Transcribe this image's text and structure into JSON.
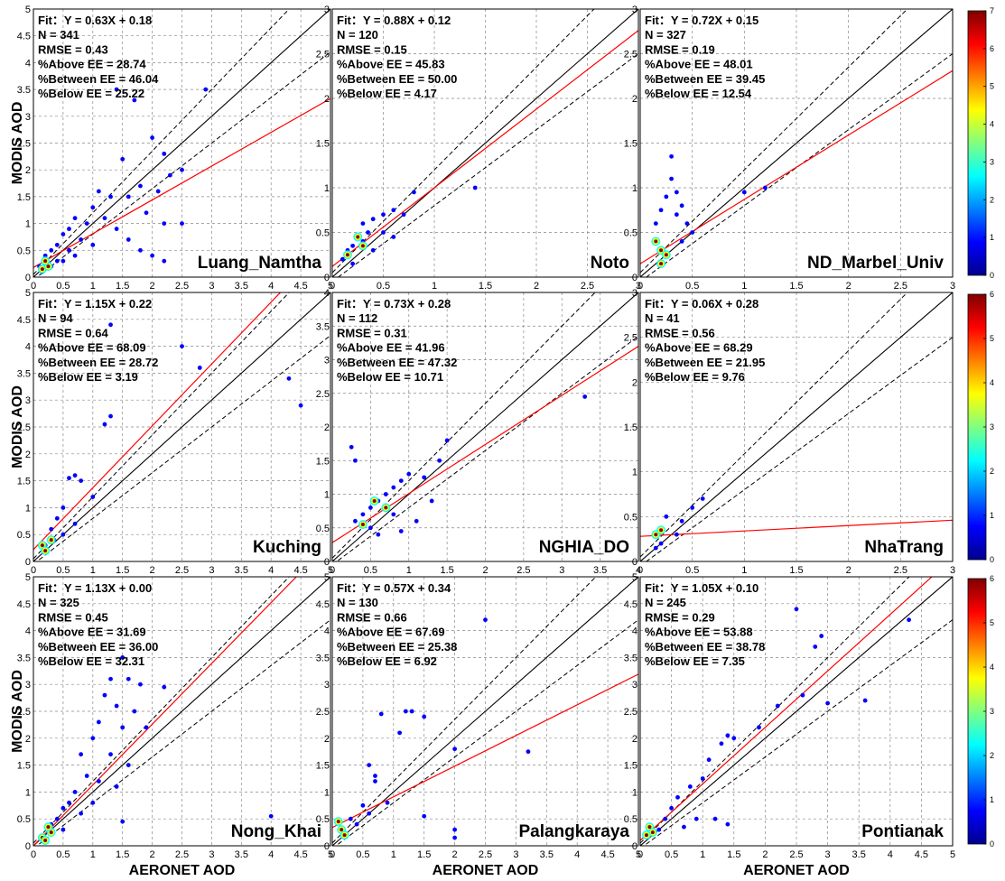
{
  "axis_labels": {
    "x": "AERONET AOD",
    "y": "MODIS AOD"
  },
  "colorbars": [
    {
      "max": 7,
      "ticks": [
        "0",
        "1",
        "2",
        "3",
        "4",
        "5",
        "6",
        "7"
      ]
    },
    {
      "max": 6,
      "ticks": [
        "0",
        "1",
        "2",
        "3",
        "4",
        "5",
        "6"
      ]
    },
    {
      "max": 6,
      "ticks": [
        "0",
        "1",
        "2",
        "3",
        "4",
        "5",
        "6"
      ]
    }
  ],
  "colormap": [
    "#00008f",
    "#0000ff",
    "#0080ff",
    "#00ffff",
    "#80ff80",
    "#ffff00",
    "#ff8000",
    "#ff0000",
    "#800000"
  ],
  "line_colors": {
    "one_to_one": "#000000",
    "envelope": "#000000",
    "fit": "#ff0000",
    "point": "#0000ff"
  },
  "chart_data": [
    {
      "type": "scatter",
      "site": "Luang_Namtha",
      "xlim": [
        0,
        5
      ],
      "ylim": [
        0,
        5
      ],
      "xticks": [
        "0",
        "0.5",
        "1",
        "1.5",
        "2",
        "2.5",
        "3",
        "3.5",
        "4",
        "4.5",
        "5"
      ],
      "yticks": [
        "0",
        "0.5",
        "1",
        "1.5",
        "2",
        "2.5",
        "3",
        "3.5",
        "4",
        "4.5",
        "5"
      ],
      "fit": {
        "slope": 0.63,
        "intercept": 0.18
      },
      "stats": [
        "Fit：Y = 0.63X + 0.18",
        "N = 341",
        "RMSE = 0.43",
        "%Above EE = 28.74",
        "%Between EE = 46.04",
        "%Below EE = 25.22"
      ],
      "points": [
        [
          1.4,
          3.5
        ],
        [
          2.9,
          3.5
        ],
        [
          1.7,
          3.3
        ],
        [
          2.0,
          2.6
        ],
        [
          2.2,
          2.3
        ],
        [
          2.5,
          2.0
        ],
        [
          1.5,
          2.2
        ],
        [
          2.3,
          1.9
        ],
        [
          1.8,
          1.7
        ],
        [
          2.1,
          1.6
        ],
        [
          1.3,
          1.5
        ],
        [
          1.6,
          1.5
        ],
        [
          1.1,
          1.6
        ],
        [
          1.9,
          1.2
        ],
        [
          2.2,
          1.0
        ],
        [
          2.5,
          1.0
        ],
        [
          1.0,
          1.3
        ],
        [
          1.2,
          1.1
        ],
        [
          0.9,
          1.0
        ],
        [
          1.4,
          0.9
        ],
        [
          0.7,
          1.1
        ],
        [
          0.6,
          0.9
        ],
        [
          0.8,
          0.7
        ],
        [
          0.5,
          0.8
        ],
        [
          1.6,
          0.7
        ],
        [
          1.8,
          0.5
        ],
        [
          2.0,
          0.4
        ],
        [
          2.2,
          0.3
        ],
        [
          0.4,
          0.6
        ],
        [
          0.3,
          0.5
        ],
        [
          0.2,
          0.4
        ],
        [
          0.4,
          0.3
        ],
        [
          0.6,
          0.5
        ],
        [
          0.3,
          0.2
        ],
        [
          0.1,
          0.2
        ],
        [
          0.15,
          0.1
        ],
        [
          0.2,
          0.25
        ],
        [
          0.5,
          0.3
        ],
        [
          0.7,
          0.4
        ],
        [
          1.0,
          0.6
        ]
      ],
      "dense": [
        [
          0.15,
          0.15
        ],
        [
          0.25,
          0.2
        ],
        [
          0.2,
          0.3
        ]
      ]
    },
    {
      "type": "scatter",
      "site": "Noto",
      "xlim": [
        0,
        3
      ],
      "ylim": [
        0,
        3
      ],
      "xticks": [
        "0",
        "0.5",
        "1",
        "1.5",
        "2",
        "2.5",
        "3"
      ],
      "yticks": [
        "0",
        "0.5",
        "1",
        "1.5",
        "2",
        "2.5",
        "3"
      ],
      "fit": {
        "slope": 0.88,
        "intercept": 0.12
      },
      "stats": [
        "Fit：Y = 0.88X + 0.12",
        "N = 120",
        "RMSE = 0.15",
        "%Above EE = 45.83",
        "%Between EE = 50.00",
        "%Below EE = 4.17"
      ],
      "points": [
        [
          0.8,
          0.95
        ],
        [
          1.4,
          1.0
        ],
        [
          0.6,
          0.75
        ],
        [
          0.5,
          0.7
        ],
        [
          0.4,
          0.65
        ],
        [
          0.3,
          0.6
        ],
        [
          0.5,
          0.5
        ],
        [
          0.6,
          0.45
        ],
        [
          0.3,
          0.4
        ],
        [
          0.2,
          0.35
        ],
        [
          0.15,
          0.3
        ],
        [
          0.1,
          0.2
        ],
        [
          0.2,
          0.15
        ],
        [
          0.4,
          0.3
        ],
        [
          0.7,
          0.7
        ],
        [
          0.35,
          0.5
        ]
      ],
      "dense": [
        [
          0.25,
          0.45
        ],
        [
          0.15,
          0.25
        ],
        [
          0.3,
          0.35
        ]
      ]
    },
    {
      "type": "scatter",
      "site": "ND_Marbel_Univ",
      "xlim": [
        0,
        3
      ],
      "ylim": [
        0,
        3
      ],
      "xticks": [
        "0",
        "0.5",
        "1",
        "1.5",
        "2",
        "2.5",
        "3"
      ],
      "yticks": [
        "0",
        "0.5",
        "1",
        "1.5",
        "2",
        "2.5",
        "3"
      ],
      "fit": {
        "slope": 0.72,
        "intercept": 0.15
      },
      "stats": [
        "Fit：Y = 0.72X + 0.15",
        "N = 327",
        "RMSE = 0.19",
        "%Above EE = 48.01",
        "%Between EE = 39.45",
        "%Below EE = 12.54"
      ],
      "points": [
        [
          0.3,
          1.35
        ],
        [
          0.3,
          1.1
        ],
        [
          0.35,
          0.95
        ],
        [
          0.25,
          0.9
        ],
        [
          1.2,
          1.0
        ],
        [
          1.0,
          0.95
        ],
        [
          0.4,
          0.8
        ],
        [
          0.45,
          0.6
        ],
        [
          0.5,
          0.5
        ],
        [
          0.35,
          0.7
        ],
        [
          0.4,
          0.4
        ],
        [
          0.2,
          0.75
        ],
        [
          0.15,
          0.6
        ]
      ],
      "dense": [
        [
          0.2,
          0.3
        ],
        [
          0.25,
          0.25
        ],
        [
          0.2,
          0.15
        ],
        [
          0.15,
          0.4
        ]
      ]
    },
    {
      "type": "scatter",
      "site": "Kuching",
      "xlim": [
        0,
        5
      ],
      "ylim": [
        0,
        5
      ],
      "xticks": [
        "0",
        "0.5",
        "1",
        "1.5",
        "2",
        "2.5",
        "3",
        "3.5",
        "4",
        "4.5",
        "5"
      ],
      "yticks": [
        "0",
        "0.5",
        "1",
        "1.5",
        "2",
        "2.5",
        "3",
        "3.5",
        "4",
        "4.5",
        "5"
      ],
      "fit": {
        "slope": 1.15,
        "intercept": 0.22
      },
      "stats": [
        "Fit：Y = 1.15X + 0.22",
        "N = 94",
        "RMSE = 0.64",
        "%Above EE = 68.09",
        "%Between EE = 28.72",
        "%Below EE = 3.19"
      ],
      "points": [
        [
          1.3,
          4.4
        ],
        [
          2.5,
          4.0
        ],
        [
          2.8,
          3.6
        ],
        [
          1.3,
          2.7
        ],
        [
          1.2,
          2.55
        ],
        [
          4.3,
          3.4
        ],
        [
          4.5,
          2.9
        ],
        [
          0.7,
          1.6
        ],
        [
          0.6,
          1.55
        ],
        [
          0.8,
          1.5
        ],
        [
          1.0,
          1.2
        ],
        [
          0.5,
          1.0
        ],
        [
          0.4,
          0.8
        ],
        [
          0.3,
          0.6
        ],
        [
          0.35,
          0.4
        ],
        [
          0.2,
          0.3
        ],
        [
          0.5,
          0.5
        ],
        [
          0.7,
          0.7
        ]
      ],
      "dense": [
        [
          0.15,
          0.3
        ],
        [
          0.2,
          0.2
        ],
        [
          0.3,
          0.4
        ]
      ]
    },
    {
      "type": "scatter",
      "site": "NGHIA_DO",
      "xlim": [
        0,
        4
      ],
      "ylim": [
        0,
        4
      ],
      "xticks": [
        "0",
        "0.5",
        "1",
        "1.5",
        "2",
        "2.5",
        "3",
        "3.5",
        "4"
      ],
      "yticks": [
        "0",
        "0.5",
        "1",
        "1.5",
        "2",
        "2.5",
        "3",
        "3.5",
        "4"
      ],
      "fit": {
        "slope": 0.73,
        "intercept": 0.28
      },
      "stats": [
        "Fit：Y = 0.73X + 0.28",
        "N = 112",
        "RMSE = 0.31",
        "%Above EE = 41.96",
        "%Between EE = 47.32",
        "%Below EE = 10.71"
      ],
      "points": [
        [
          3.3,
          2.45
        ],
        [
          1.5,
          1.8
        ],
        [
          1.4,
          1.5
        ],
        [
          1.2,
          1.25
        ],
        [
          1.0,
          1.3
        ],
        [
          0.9,
          1.2
        ],
        [
          0.8,
          1.1
        ],
        [
          0.7,
          1.0
        ],
        [
          0.6,
          0.9
        ],
        [
          0.5,
          0.8
        ],
        [
          0.4,
          0.7
        ],
        [
          0.3,
          0.6
        ],
        [
          0.25,
          1.7
        ],
        [
          0.3,
          1.5
        ],
        [
          0.5,
          0.5
        ],
        [
          0.6,
          0.4
        ],
        [
          0.9,
          0.45
        ],
        [
          1.1,
          0.6
        ],
        [
          1.3,
          0.9
        ],
        [
          0.8,
          0.7
        ]
      ],
      "dense": [
        [
          0.55,
          0.9
        ],
        [
          0.7,
          0.8
        ],
        [
          0.4,
          0.55
        ]
      ]
    },
    {
      "type": "scatter",
      "site": "NhaTrang",
      "xlim": [
        0,
        3
      ],
      "ylim": [
        0,
        3
      ],
      "xticks": [
        "0",
        "0.5",
        "1",
        "1.5",
        "2",
        "2.5",
        "3"
      ],
      "yticks": [
        "0",
        "0.5",
        "1",
        "1.5",
        "2",
        "2.5",
        "3"
      ],
      "fit": {
        "slope": 0.06,
        "intercept": 0.28
      },
      "stats": [
        "Fit：Y = 0.06X + 0.28",
        "N = 41",
        "RMSE = 0.56",
        "%Above EE = 68.29",
        "%Between EE = 21.95",
        "%Below EE = 9.76"
      ],
      "points": [
        [
          0.6,
          0.7
        ],
        [
          0.5,
          0.6
        ],
        [
          0.4,
          0.45
        ],
        [
          0.35,
          0.3
        ],
        [
          0.2,
          0.2
        ],
        [
          0.15,
          0.15
        ],
        [
          0.25,
          0.5
        ]
      ],
      "dense": [
        [
          0.15,
          0.3
        ],
        [
          0.2,
          0.35
        ]
      ]
    },
    {
      "type": "scatter",
      "site": "Nong_Khai",
      "xlim": [
        0,
        5
      ],
      "ylim": [
        0,
        5
      ],
      "xticks": [
        "0",
        "0.5",
        "1",
        "1.5",
        "2",
        "2.5",
        "3",
        "3.5",
        "4",
        "4.5",
        "5"
      ],
      "yticks": [
        "0",
        "0.5",
        "1",
        "1.5",
        "2",
        "2.5",
        "3",
        "3.5",
        "4",
        "4.5",
        "5"
      ],
      "fit": {
        "slope": 1.13,
        "intercept": 0.0
      },
      "stats": [
        "Fit：Y = 1.13X + 0.00",
        "N = 325",
        "RMSE = 0.45",
        "%Above EE = 31.69",
        "%Between EE = 36.00",
        "%Below EE = 32.31"
      ],
      "points": [
        [
          1.5,
          3.5
        ],
        [
          1.3,
          3.1
        ],
        [
          1.6,
          3.1
        ],
        [
          1.8,
          3.0
        ],
        [
          2.2,
          2.95
        ],
        [
          1.4,
          2.6
        ],
        [
          1.7,
          2.5
        ],
        [
          1.2,
          2.8
        ],
        [
          1.0,
          2.0
        ],
        [
          1.1,
          2.3
        ],
        [
          1.5,
          2.2
        ],
        [
          1.9,
          2.2
        ],
        [
          1.3,
          1.7
        ],
        [
          0.8,
          1.7
        ],
        [
          0.9,
          1.3
        ],
        [
          1.1,
          1.2
        ],
        [
          1.6,
          1.5
        ],
        [
          1.4,
          1.1
        ],
        [
          0.7,
          1.0
        ],
        [
          0.6,
          0.8
        ],
        [
          0.5,
          0.7
        ],
        [
          0.4,
          0.5
        ],
        [
          0.3,
          0.4
        ],
        [
          1.0,
          0.8
        ],
        [
          0.8,
          0.6
        ],
        [
          0.5,
          0.3
        ],
        [
          1.5,
          0.45
        ],
        [
          4.0,
          0.55
        ]
      ],
      "dense": [
        [
          0.15,
          0.15
        ],
        [
          0.2,
          0.1
        ],
        [
          0.3,
          0.25
        ],
        [
          0.25,
          0.35
        ]
      ]
    },
    {
      "type": "scatter",
      "site": "Palangkaraya",
      "xlim": [
        0,
        5
      ],
      "ylim": [
        0,
        5
      ],
      "xticks": [
        "0",
        "0.5",
        "1",
        "1.5",
        "2",
        "2.5",
        "3",
        "3.5",
        "4",
        "4.5",
        "5"
      ],
      "yticks": [
        "0",
        "0.5",
        "1",
        "1.5",
        "2",
        "2.5",
        "3",
        "3.5",
        "4",
        "4.5",
        "5"
      ],
      "fit": {
        "slope": 0.57,
        "intercept": 0.34
      },
      "stats": [
        "Fit：Y = 0.57X + 0.34",
        "N = 130",
        "RMSE = 0.66",
        "%Above EE = 67.69",
        "%Between EE = 25.38",
        "%Below EE = 6.92"
      ],
      "points": [
        [
          2.5,
          4.2
        ],
        [
          1.2,
          2.5
        ],
        [
          1.3,
          2.5
        ],
        [
          1.1,
          2.1
        ],
        [
          0.8,
          2.45
        ],
        [
          1.5,
          2.4
        ],
        [
          2.0,
          1.8
        ],
        [
          3.2,
          1.75
        ],
        [
          0.6,
          1.5
        ],
        [
          0.7,
          1.3
        ],
        [
          0.7,
          1.2
        ],
        [
          0.5,
          0.75
        ],
        [
          0.6,
          0.6
        ],
        [
          1.5,
          0.55
        ],
        [
          2.0,
          0.3
        ],
        [
          2.0,
          0.15
        ],
        [
          0.3,
          0.5
        ],
        [
          0.4,
          0.4
        ],
        [
          0.9,
          0.8
        ]
      ],
      "dense": [
        [
          0.15,
          0.3
        ],
        [
          0.2,
          0.2
        ],
        [
          0.1,
          0.45
        ]
      ]
    },
    {
      "type": "scatter",
      "site": "Pontianak",
      "xlim": [
        0,
        5
      ],
      "ylim": [
        0,
        5
      ],
      "xticks": [
        "0",
        "0.5",
        "1",
        "1.5",
        "2",
        "2.5",
        "3",
        "3.5",
        "4",
        "4.5",
        "5"
      ],
      "yticks": [
        "0",
        "0.5",
        "1",
        "1.5",
        "2",
        "2.5",
        "3",
        "3.5",
        "4",
        "4.5",
        "5"
      ],
      "fit": {
        "slope": 1.05,
        "intercept": 0.1
      },
      "stats": [
        "Fit：Y = 1.05X + 0.10",
        "N = 245",
        "RMSE = 0.29",
        "%Above EE = 53.88",
        "%Between EE = 38.78",
        "%Below EE = 7.35"
      ],
      "points": [
        [
          2.5,
          4.4
        ],
        [
          4.3,
          4.2
        ],
        [
          2.9,
          3.9
        ],
        [
          2.8,
          3.7
        ],
        [
          3.0,
          2.65
        ],
        [
          3.6,
          2.7
        ],
        [
          2.6,
          2.8
        ],
        [
          2.2,
          2.6
        ],
        [
          1.9,
          2.2
        ],
        [
          1.5,
          2.0
        ],
        [
          1.4,
          2.05
        ],
        [
          1.3,
          1.9
        ],
        [
          1.1,
          1.6
        ],
        [
          1.0,
          1.25
        ],
        [
          0.8,
          1.1
        ],
        [
          0.6,
          0.9
        ],
        [
          0.5,
          0.7
        ],
        [
          0.4,
          0.5
        ],
        [
          1.2,
          0.5
        ],
        [
          1.4,
          0.4
        ],
        [
          0.9,
          0.5
        ],
        [
          0.7,
          0.35
        ],
        [
          0.3,
          0.3
        ]
      ],
      "dense": [
        [
          0.15,
          0.35
        ],
        [
          0.2,
          0.25
        ],
        [
          0.1,
          0.2
        ]
      ]
    }
  ]
}
